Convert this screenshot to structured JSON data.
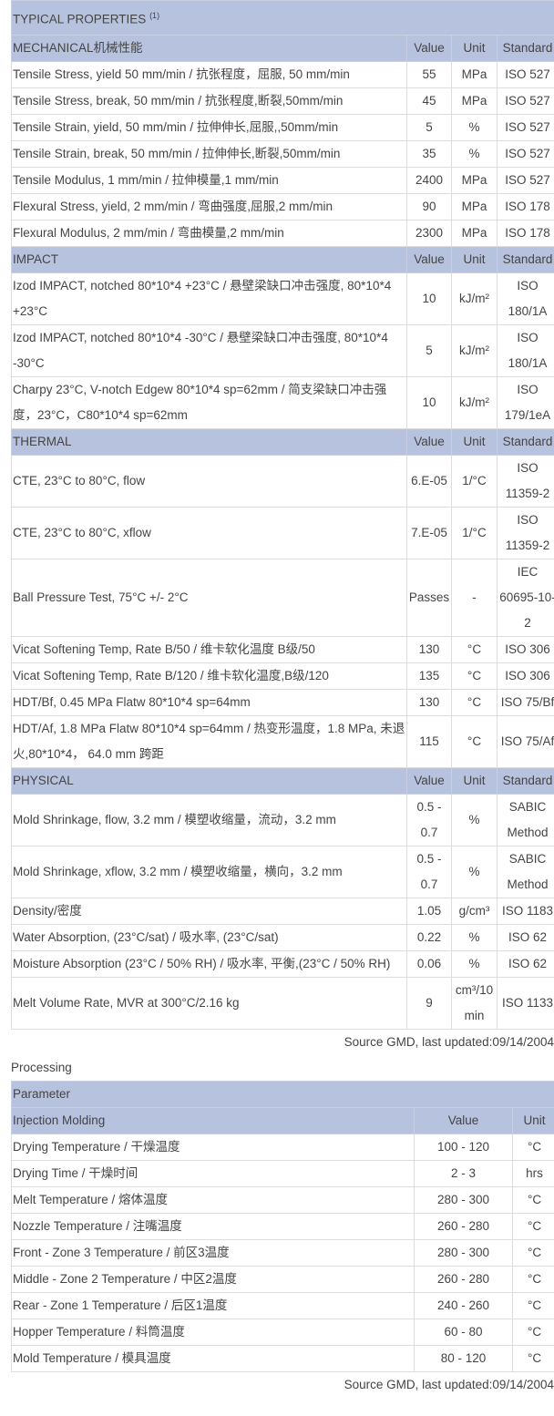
{
  "properties": {
    "title": "TYPICAL PROPERTIES",
    "footnote": "(1)",
    "sections": [
      {
        "name": "MECHANICAL机械性能",
        "headers": [
          "Value",
          "Unit",
          "Standard"
        ],
        "rows": [
          [
            "Tensile Stress, yield 50 mm/min / 抗张程度，屈服, 50 mm/min",
            "55",
            "MPa",
            "ISO 527"
          ],
          [
            "Tensile Stress, break, 50 mm/min / 抗张程度,断裂,50mm/min",
            "45",
            "MPa",
            "ISO 527"
          ],
          [
            "Tensile Strain, yield, 50 mm/min / 拉伸伸长,屈服,,50mm/min",
            "5",
            "%",
            "ISO 527"
          ],
          [
            "Tensile Strain, break, 50 mm/min / 拉伸伸长,断裂,50mm/min",
            "35",
            "%",
            "ISO 527"
          ],
          [
            "Tensile Modulus, 1 mm/min / 拉伸模量,1 mm/min",
            "2400",
            "MPa",
            "ISO 527"
          ],
          [
            "Flexural Stress, yield, 2 mm/min / 弯曲强度,屈服,2 mm/min",
            "90",
            "MPa",
            "ISO 178"
          ],
          [
            "Flexural Modulus, 2 mm/min / 弯曲模量,2 mm/min",
            "2300",
            "MPa",
            "ISO 178"
          ]
        ]
      },
      {
        "name": "IMPACT",
        "headers": [
          "Value",
          "Unit",
          "Standard"
        ],
        "rows": [
          [
            "Izod IMPACT, notched 80*10*4 +23°C / 悬壁梁缺口冲击强度, 80*10*4 +23°C",
            "10",
            "kJ/m²",
            "ISO 180/1A"
          ],
          [
            "Izod IMPACT, notched 80*10*4 -30°C / 悬壁梁缺口冲击强度, 80*10*4 -30°C",
            "5",
            "kJ/m²",
            "ISO 180/1A"
          ],
          [
            "Charpy 23°C, V-notch Edgew 80*10*4 sp=62mm / 简支梁缺口冲击强度，23°C，C80*10*4 sp=62mm",
            "10",
            "kJ/m²",
            "ISO 179/1eA"
          ]
        ]
      },
      {
        "name": "THERMAL",
        "headers": [
          "Value",
          "Unit",
          "Standard"
        ],
        "rows": [
          [
            "CTE, 23°C to 80°C, flow",
            "6.E-05",
            "1/°C",
            "ISO 11359-2"
          ],
          [
            "CTE, 23°C to 80°C, xflow",
            "7.E-05",
            "1/°C",
            "ISO 11359-2"
          ],
          [
            "Ball Pressure Test, 75°C +/- 2°C",
            "Passes",
            "-",
            "IEC 60695-10-2"
          ],
          [
            "Vicat Softening Temp, Rate B/50 / 维卡软化温度 B级/50",
            "130",
            "°C",
            "ISO 306"
          ],
          [
            "Vicat Softening Temp, Rate B/120 / 维卡软化温度,B级/120",
            "135",
            "°C",
            "ISO 306"
          ],
          [
            "HDT/Bf, 0.45 MPa Flatw 80*10*4 sp=64mm",
            "130",
            "°C",
            "ISO 75/Bf"
          ],
          [
            "HDT/Af, 1.8 MPa Flatw 80*10*4 sp=64mm / 热变形温度，1.8 MPa, 未退火,80*10*4， 64.0 mm 跨距",
            "115",
            "°C",
            "ISO 75/Af"
          ]
        ]
      },
      {
        "name": "PHYSICAL",
        "headers": [
          "Value",
          "Unit",
          "Standard"
        ],
        "rows": [
          [
            "Mold Shrinkage, flow, 3.2 mm / 模塑收缩量，流动，3.2 mm",
            "0.5 - 0.7",
            "%",
            "SABIC Method"
          ],
          [
            "Mold Shrinkage, xflow, 3.2 mm / 模塑收缩量，横向，3.2 mm",
            "0.5 - 0.7",
            "%",
            "SABIC Method"
          ],
          [
            "Density/密度",
            "1.05",
            "g/cm³",
            "ISO 1183"
          ],
          [
            "Water Absorption, (23°C/sat) / 吸水率, (23°C/sat)",
            "0.22",
            "%",
            "ISO 62"
          ],
          [
            "Moisture Absorption (23°C / 50% RH) / 吸水率, 平衡,(23°C / 50% RH)",
            "0.06",
            "%",
            "ISO 62"
          ],
          [
            "Melt Volume Rate, MVR at 300°C/2.16 kg",
            "9",
            "cm³/10 min",
            "ISO 1133"
          ]
        ]
      }
    ],
    "source": "Source GMD, last updated:09/14/2004"
  },
  "processing": {
    "title": "Processing",
    "header": "Parameter",
    "section": "Injection Molding",
    "headers": [
      "Value",
      "Unit"
    ],
    "rows": [
      [
        "Drying Temperature / 干燥温度",
        "100 - 120",
        "°C"
      ],
      [
        "Drying Time / 干燥时间",
        "2 - 3",
        "hrs"
      ],
      [
        "Melt Temperature / 熔体温度",
        "280 - 300",
        "°C"
      ],
      [
        "Nozzle Temperature / 注嘴温度",
        "260 - 280",
        "°C"
      ],
      [
        "Front - Zone 3 Temperature / 前区3温度",
        "280 - 300",
        "°C"
      ],
      [
        "Middle - Zone 2 Temperature / 中区2温度",
        "260 - 280",
        "°C"
      ],
      [
        "Rear - Zone 1 Temperature / 后区1温度",
        "240 - 260",
        "°C"
      ],
      [
        "Hopper Temperature / 料筒温度",
        "60 - 80",
        "°C"
      ],
      [
        "Mold Temperature / 模具温度",
        "80 - 120",
        "°C"
      ]
    ],
    "source": "Source GMD, last updated:09/14/2004"
  }
}
